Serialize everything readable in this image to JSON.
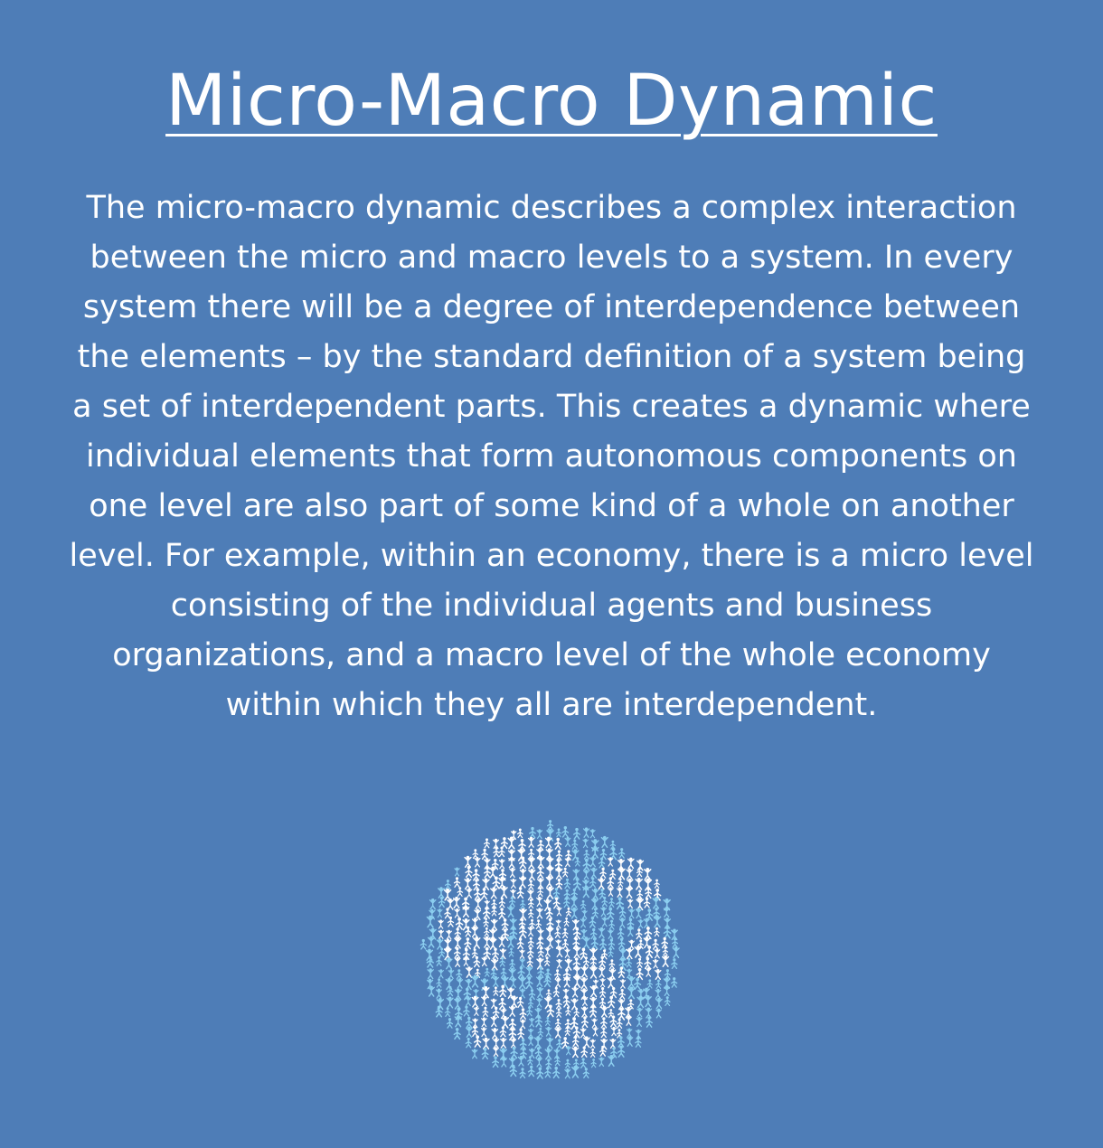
{
  "title": "Micro-Macro Dynamic",
  "body": "The micro-macro dynamic describes a complex interaction between the micro and macro levels to a system. In every system there will be a degree of interdependence between the elements – by the standard definition of a system being a set of interdependent parts. This creates a dynamic where individual elements that form autonomous components on one level are also part of some kind of a whole on another level. For example, within an economy, there is a micro level consisting of the individual agents and business organizations, and a macro level of the whole economy within which they all are interdependent.",
  "colors": {
    "background": "#4e7db7",
    "text": "#ffffff",
    "ocean_figures": "#8ccff0",
    "land_figures": "#ffffff"
  },
  "illustration": {
    "icon": "globe-of-people-icon"
  }
}
